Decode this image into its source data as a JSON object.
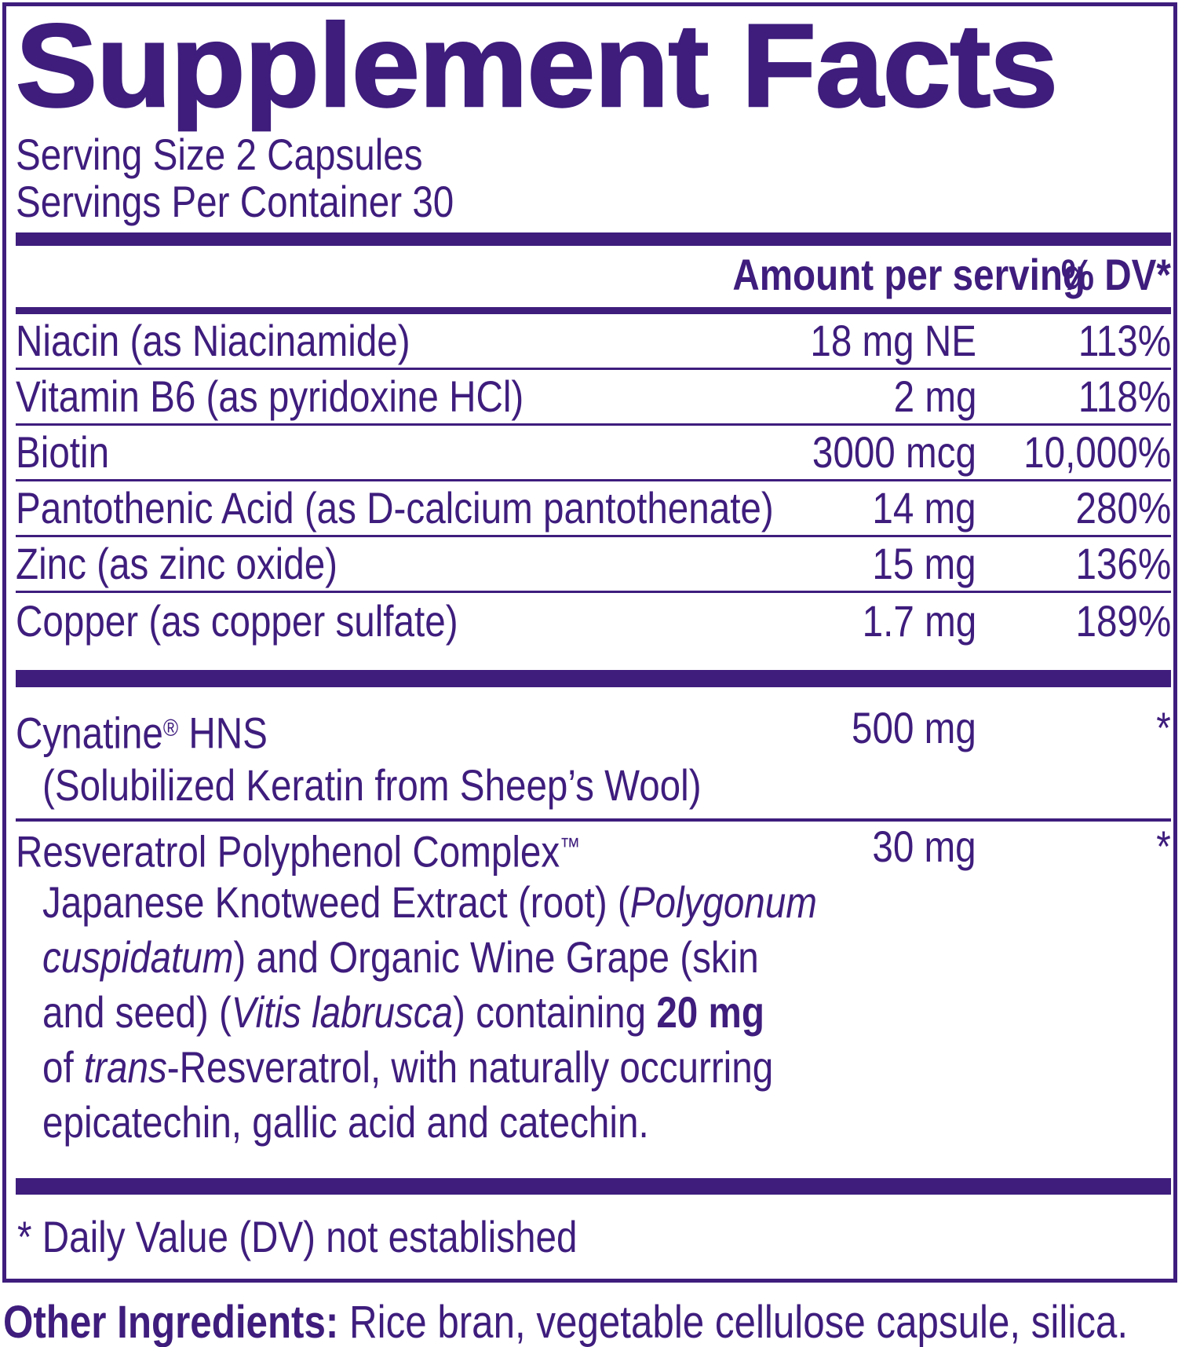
{
  "colors": {
    "purple": "#3E1D7D"
  },
  "title": "Supplement Facts",
  "serving": {
    "size_line": "Serving Size 2 Capsules",
    "per_container_line": "Servings Per Container 30"
  },
  "header": {
    "amount_label": "Amount per serving",
    "dv_label": "% DV*"
  },
  "nutrients": [
    {
      "name": "Niacin (as Niacinamide)",
      "amount": "18 mg NE",
      "dv": "113%"
    },
    {
      "name": "Vitamin B6 (as pyridoxine HCl)",
      "amount": "2 mg",
      "dv": "118%"
    },
    {
      "name": "Biotin",
      "amount": "3000 mcg",
      "dv": "10,000%"
    },
    {
      "name": "Pantothenic Acid (as D-calcium pantothenate)",
      "amount": "14 mg",
      "dv": "280%"
    },
    {
      "name": "Zinc (as zinc oxide)",
      "amount": "15 mg",
      "dv": "136%"
    },
    {
      "name": "Copper (as copper sulfate)",
      "amount": "1.7 mg",
      "dv": "189%"
    }
  ],
  "proprietary": [
    {
      "name": "Cynatine",
      "mark": "®",
      "name_rest": " HNS",
      "amount": "500 mg",
      "dv": "*",
      "subtext": "(Solubilized Keratin from Sheep’s Wool)"
    },
    {
      "name": "Resveratrol Polyphenol Complex",
      "mark": "™",
      "name_rest": "",
      "amount": "30 mg",
      "dv": "*",
      "description_lines": [
        [
          {
            "t": "Japanese Knotweed Extract (root) ("
          },
          {
            "t": "Polygonum",
            "i": true
          }
        ],
        [
          {
            "t": "cuspidatum",
            "i": true
          },
          {
            "t": ") and Organic Wine Grape (skin"
          }
        ],
        [
          {
            "t": "and seed) ("
          },
          {
            "t": "Vitis labrusca",
            "i": true
          },
          {
            "t": ") containing "
          },
          {
            "t": "20 mg",
            "b": true
          }
        ],
        [
          {
            "t": "of "
          },
          {
            "t": "trans",
            "i": true
          },
          {
            "t": "-Resveratrol, with naturally occurring"
          }
        ],
        [
          {
            "t": "epicatechin, gallic acid and catechin."
          }
        ]
      ]
    }
  ],
  "footnote": {
    "text": "* Daily Value (DV) not established"
  },
  "other_ingredients": {
    "label": "Other Ingredients:",
    "text": " Rice bran, vegetable cellulose capsule, silica."
  }
}
